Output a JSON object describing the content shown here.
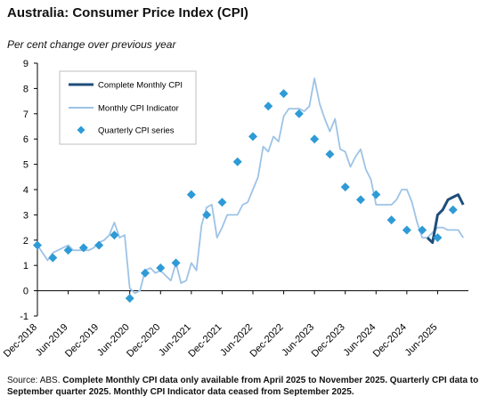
{
  "header": {
    "title": "Australia: Consumer Price Index (CPI)",
    "subtitle": "Per cent change over previous year"
  },
  "footer": {
    "source_prefix": "Source: ABS.",
    "source_note": "Complete Monthly CPI data only available  from April 2025 to November 2025. Quarterly CPI data to September quarter 2025. Monthly CPI Indicator data ceased from September 2025."
  },
  "chart_data": {
    "type": "line",
    "title": "Australia: Consumer Price Index (CPI)",
    "ylabel": "Per cent change over previous year",
    "ylim": [
      -1,
      9
    ],
    "yticks": [
      -1,
      0,
      1,
      2,
      3,
      4,
      5,
      6,
      7,
      8,
      9
    ],
    "xlim": [
      "2018-12",
      "2025-12"
    ],
    "xticks": [
      "Dec-2018",
      "Jun-2019",
      "Dec-2019",
      "Jun-2020",
      "Dec-2020",
      "Jun-2021",
      "Dec-2021",
      "Jun-2022",
      "Dec-2022",
      "Jun-2023",
      "Dec-2023",
      "Jun-2024",
      "Dec-2024",
      "Jun-2025"
    ],
    "grid": false,
    "legend_position": "top-left",
    "series": [
      {
        "name": "Complete Monthly CPI",
        "kind": "line",
        "color": "#1f4e79",
        "points": [
          [
            "2025-04",
            2.1
          ],
          [
            "2025-05",
            1.9
          ],
          [
            "2025-06",
            3.0
          ],
          [
            "2025-07",
            3.2
          ],
          [
            "2025-08",
            3.6
          ],
          [
            "2025-09",
            3.7
          ],
          [
            "2025-10",
            3.8
          ],
          [
            "2025-11",
            3.4
          ]
        ]
      },
      {
        "name": "Monthly CPI Indicator",
        "kind": "line",
        "color": "#9dc3e6",
        "points": [
          [
            "2018-12",
            1.8
          ],
          [
            "2019-01",
            1.5
          ],
          [
            "2019-02",
            1.2
          ],
          [
            "2019-03",
            1.5
          ],
          [
            "2019-04",
            1.6
          ],
          [
            "2019-05",
            1.7
          ],
          [
            "2019-06",
            1.8
          ],
          [
            "2019-07",
            1.6
          ],
          [
            "2019-08",
            1.6
          ],
          [
            "2019-09",
            1.6
          ],
          [
            "2019-10",
            1.6
          ],
          [
            "2019-11",
            1.7
          ],
          [
            "2019-12",
            1.9
          ],
          [
            "2020-01",
            2.0
          ],
          [
            "2020-02",
            2.2
          ],
          [
            "2020-03",
            2.7
          ],
          [
            "2020-04",
            2.1
          ],
          [
            "2020-05",
            2.2
          ],
          [
            "2020-06",
            0.1
          ],
          [
            "2020-07",
            -0.1
          ],
          [
            "2020-08",
            0.0
          ],
          [
            "2020-09",
            0.8
          ],
          [
            "2020-10",
            0.9
          ],
          [
            "2020-11",
            0.7
          ],
          [
            "2020-12",
            0.8
          ],
          [
            "2021-01",
            0.6
          ],
          [
            "2021-02",
            0.4
          ],
          [
            "2021-03",
            1.1
          ],
          [
            "2021-04",
            0.3
          ],
          [
            "2021-05",
            0.4
          ],
          [
            "2021-06",
            1.1
          ],
          [
            "2021-07",
            0.8
          ],
          [
            "2021-08",
            2.6
          ],
          [
            "2021-09",
            3.3
          ],
          [
            "2021-10",
            3.4
          ],
          [
            "2021-11",
            2.1
          ],
          [
            "2021-12",
            2.5
          ],
          [
            "2022-01",
            3.0
          ],
          [
            "2022-02",
            3.0
          ],
          [
            "2022-03",
            3.0
          ],
          [
            "2022-04",
            3.4
          ],
          [
            "2022-05",
            3.5
          ],
          [
            "2022-06",
            4.0
          ],
          [
            "2022-07",
            4.5
          ],
          [
            "2022-08",
            5.7
          ],
          [
            "2022-09",
            5.5
          ],
          [
            "2022-10",
            6.1
          ],
          [
            "2022-11",
            5.9
          ],
          [
            "2022-12",
            6.9
          ],
          [
            "2023-01",
            7.2
          ],
          [
            "2023-02",
            7.2
          ],
          [
            "2023-03",
            7.2
          ],
          [
            "2023-04",
            7.1
          ],
          [
            "2023-05",
            7.3
          ],
          [
            "2023-06",
            8.4
          ],
          [
            "2023-07",
            7.4
          ],
          [
            "2023-08",
            6.8
          ],
          [
            "2023-09",
            6.3
          ],
          [
            "2023-10",
            6.8
          ],
          [
            "2023-11",
            5.6
          ],
          [
            "2023-12",
            5.5
          ],
          [
            "2024-01",
            4.9
          ],
          [
            "2024-02",
            5.3
          ],
          [
            "2024-03",
            5.6
          ],
          [
            "2024-04",
            4.8
          ],
          [
            "2024-05",
            4.4
          ],
          [
            "2024-06",
            3.4
          ],
          [
            "2024-07",
            3.4
          ],
          [
            "2024-08",
            3.4
          ],
          [
            "2024-09",
            3.4
          ],
          [
            "2024-10",
            3.6
          ],
          [
            "2024-11",
            4.0
          ],
          [
            "2024-12",
            4.0
          ],
          [
            "2025-01",
            3.5
          ],
          [
            "2025-02",
            2.7
          ],
          [
            "2025-03",
            2.1
          ],
          [
            "2025-04",
            2.1
          ],
          [
            "2025-05",
            2.3
          ],
          [
            "2025-06",
            2.5
          ],
          [
            "2025-07",
            2.5
          ],
          [
            "2025-08",
            2.4
          ],
          [
            "2025-09",
            2.4
          ],
          [
            "2025-10",
            2.4
          ],
          [
            "2025-11",
            2.1
          ]
        ]
      },
      {
        "name": "Quarterly CPI series",
        "kind": "marker",
        "color": "#2e9bd6",
        "points": [
          [
            "2018-12",
            1.8
          ],
          [
            "2019-03",
            1.3
          ],
          [
            "2019-06",
            1.6
          ],
          [
            "2019-09",
            1.7
          ],
          [
            "2019-12",
            1.8
          ],
          [
            "2020-03",
            2.2
          ],
          [
            "2020-06",
            -0.3
          ],
          [
            "2020-09",
            0.7
          ],
          [
            "2020-12",
            0.9
          ],
          [
            "2021-03",
            1.1
          ],
          [
            "2021-06",
            3.8
          ],
          [
            "2021-09",
            3.0
          ],
          [
            "2021-12",
            3.5
          ],
          [
            "2022-03",
            5.1
          ],
          [
            "2022-06",
            6.1
          ],
          [
            "2022-09",
            7.3
          ],
          [
            "2022-12",
            7.8
          ],
          [
            "2023-03",
            7.0
          ],
          [
            "2023-06",
            6.0
          ],
          [
            "2023-09",
            5.4
          ],
          [
            "2023-12",
            4.1
          ],
          [
            "2024-03",
            3.6
          ],
          [
            "2024-06",
            3.8
          ],
          [
            "2024-09",
            2.8
          ],
          [
            "2024-12",
            2.4
          ],
          [
            "2025-03",
            2.4
          ],
          [
            "2025-06",
            2.1
          ],
          [
            "2025-09",
            3.2
          ]
        ]
      }
    ]
  }
}
